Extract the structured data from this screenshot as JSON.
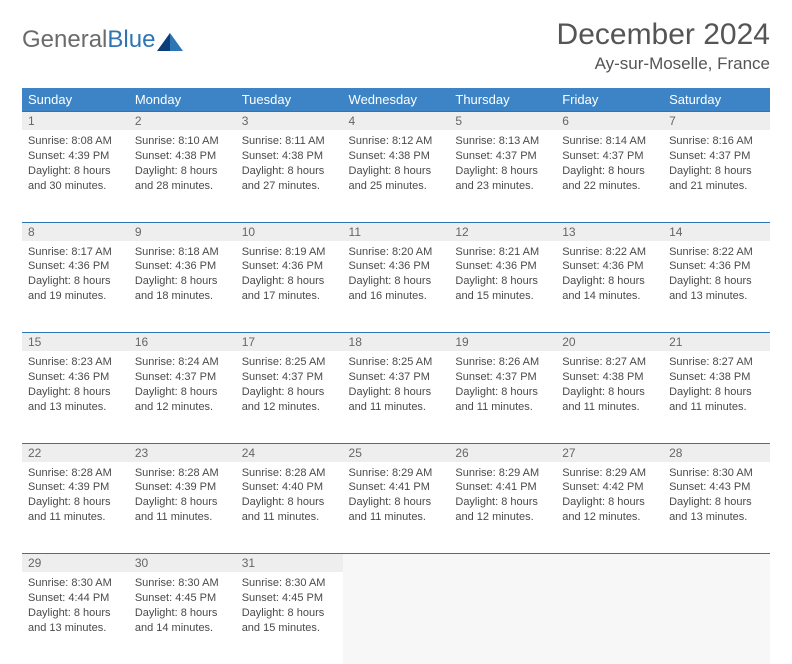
{
  "logo": {
    "textA": "General",
    "textB": "Blue"
  },
  "header": {
    "title": "December 2024",
    "location": "Ay-sur-Moselle, France"
  },
  "colors": {
    "header_bg": "#3d84c6",
    "header_text": "#ffffff",
    "daynum_bg": "#eeeeee",
    "border": "#2e75b6",
    "logo_gray": "#6b6b6b",
    "logo_blue": "#2e75b6"
  },
  "weekdays": [
    "Sunday",
    "Monday",
    "Tuesday",
    "Wednesday",
    "Thursday",
    "Friday",
    "Saturday"
  ],
  "weeks": [
    [
      {
        "n": "1",
        "sr": "Sunrise: 8:08 AM",
        "ss": "Sunset: 4:39 PM",
        "d1": "Daylight: 8 hours",
        "d2": "and 30 minutes."
      },
      {
        "n": "2",
        "sr": "Sunrise: 8:10 AM",
        "ss": "Sunset: 4:38 PM",
        "d1": "Daylight: 8 hours",
        "d2": "and 28 minutes."
      },
      {
        "n": "3",
        "sr": "Sunrise: 8:11 AM",
        "ss": "Sunset: 4:38 PM",
        "d1": "Daylight: 8 hours",
        "d2": "and 27 minutes."
      },
      {
        "n": "4",
        "sr": "Sunrise: 8:12 AM",
        "ss": "Sunset: 4:38 PM",
        "d1": "Daylight: 8 hours",
        "d2": "and 25 minutes."
      },
      {
        "n": "5",
        "sr": "Sunrise: 8:13 AM",
        "ss": "Sunset: 4:37 PM",
        "d1": "Daylight: 8 hours",
        "d2": "and 23 minutes."
      },
      {
        "n": "6",
        "sr": "Sunrise: 8:14 AM",
        "ss": "Sunset: 4:37 PM",
        "d1": "Daylight: 8 hours",
        "d2": "and 22 minutes."
      },
      {
        "n": "7",
        "sr": "Sunrise: 8:16 AM",
        "ss": "Sunset: 4:37 PM",
        "d1": "Daylight: 8 hours",
        "d2": "and 21 minutes."
      }
    ],
    [
      {
        "n": "8",
        "sr": "Sunrise: 8:17 AM",
        "ss": "Sunset: 4:36 PM",
        "d1": "Daylight: 8 hours",
        "d2": "and 19 minutes."
      },
      {
        "n": "9",
        "sr": "Sunrise: 8:18 AM",
        "ss": "Sunset: 4:36 PM",
        "d1": "Daylight: 8 hours",
        "d2": "and 18 minutes."
      },
      {
        "n": "10",
        "sr": "Sunrise: 8:19 AM",
        "ss": "Sunset: 4:36 PM",
        "d1": "Daylight: 8 hours",
        "d2": "and 17 minutes."
      },
      {
        "n": "11",
        "sr": "Sunrise: 8:20 AM",
        "ss": "Sunset: 4:36 PM",
        "d1": "Daylight: 8 hours",
        "d2": "and 16 minutes."
      },
      {
        "n": "12",
        "sr": "Sunrise: 8:21 AM",
        "ss": "Sunset: 4:36 PM",
        "d1": "Daylight: 8 hours",
        "d2": "and 15 minutes."
      },
      {
        "n": "13",
        "sr": "Sunrise: 8:22 AM",
        "ss": "Sunset: 4:36 PM",
        "d1": "Daylight: 8 hours",
        "d2": "and 14 minutes."
      },
      {
        "n": "14",
        "sr": "Sunrise: 8:22 AM",
        "ss": "Sunset: 4:36 PM",
        "d1": "Daylight: 8 hours",
        "d2": "and 13 minutes."
      }
    ],
    [
      {
        "n": "15",
        "sr": "Sunrise: 8:23 AM",
        "ss": "Sunset: 4:36 PM",
        "d1": "Daylight: 8 hours",
        "d2": "and 13 minutes."
      },
      {
        "n": "16",
        "sr": "Sunrise: 8:24 AM",
        "ss": "Sunset: 4:37 PM",
        "d1": "Daylight: 8 hours",
        "d2": "and 12 minutes."
      },
      {
        "n": "17",
        "sr": "Sunrise: 8:25 AM",
        "ss": "Sunset: 4:37 PM",
        "d1": "Daylight: 8 hours",
        "d2": "and 12 minutes."
      },
      {
        "n": "18",
        "sr": "Sunrise: 8:25 AM",
        "ss": "Sunset: 4:37 PM",
        "d1": "Daylight: 8 hours",
        "d2": "and 11 minutes."
      },
      {
        "n": "19",
        "sr": "Sunrise: 8:26 AM",
        "ss": "Sunset: 4:37 PM",
        "d1": "Daylight: 8 hours",
        "d2": "and 11 minutes."
      },
      {
        "n": "20",
        "sr": "Sunrise: 8:27 AM",
        "ss": "Sunset: 4:38 PM",
        "d1": "Daylight: 8 hours",
        "d2": "and 11 minutes."
      },
      {
        "n": "21",
        "sr": "Sunrise: 8:27 AM",
        "ss": "Sunset: 4:38 PM",
        "d1": "Daylight: 8 hours",
        "d2": "and 11 minutes."
      }
    ],
    [
      {
        "n": "22",
        "sr": "Sunrise: 8:28 AM",
        "ss": "Sunset: 4:39 PM",
        "d1": "Daylight: 8 hours",
        "d2": "and 11 minutes."
      },
      {
        "n": "23",
        "sr": "Sunrise: 8:28 AM",
        "ss": "Sunset: 4:39 PM",
        "d1": "Daylight: 8 hours",
        "d2": "and 11 minutes."
      },
      {
        "n": "24",
        "sr": "Sunrise: 8:28 AM",
        "ss": "Sunset: 4:40 PM",
        "d1": "Daylight: 8 hours",
        "d2": "and 11 minutes."
      },
      {
        "n": "25",
        "sr": "Sunrise: 8:29 AM",
        "ss": "Sunset: 4:41 PM",
        "d1": "Daylight: 8 hours",
        "d2": "and 11 minutes."
      },
      {
        "n": "26",
        "sr": "Sunrise: 8:29 AM",
        "ss": "Sunset: 4:41 PM",
        "d1": "Daylight: 8 hours",
        "d2": "and 12 minutes."
      },
      {
        "n": "27",
        "sr": "Sunrise: 8:29 AM",
        "ss": "Sunset: 4:42 PM",
        "d1": "Daylight: 8 hours",
        "d2": "and 12 minutes."
      },
      {
        "n": "28",
        "sr": "Sunrise: 8:30 AM",
        "ss": "Sunset: 4:43 PM",
        "d1": "Daylight: 8 hours",
        "d2": "and 13 minutes."
      }
    ],
    [
      {
        "n": "29",
        "sr": "Sunrise: 8:30 AM",
        "ss": "Sunset: 4:44 PM",
        "d1": "Daylight: 8 hours",
        "d2": "and 13 minutes."
      },
      {
        "n": "30",
        "sr": "Sunrise: 8:30 AM",
        "ss": "Sunset: 4:45 PM",
        "d1": "Daylight: 8 hours",
        "d2": "and 14 minutes."
      },
      {
        "n": "31",
        "sr": "Sunrise: 8:30 AM",
        "ss": "Sunset: 4:45 PM",
        "d1": "Daylight: 8 hours",
        "d2": "and 15 minutes."
      },
      null,
      null,
      null,
      null
    ]
  ]
}
